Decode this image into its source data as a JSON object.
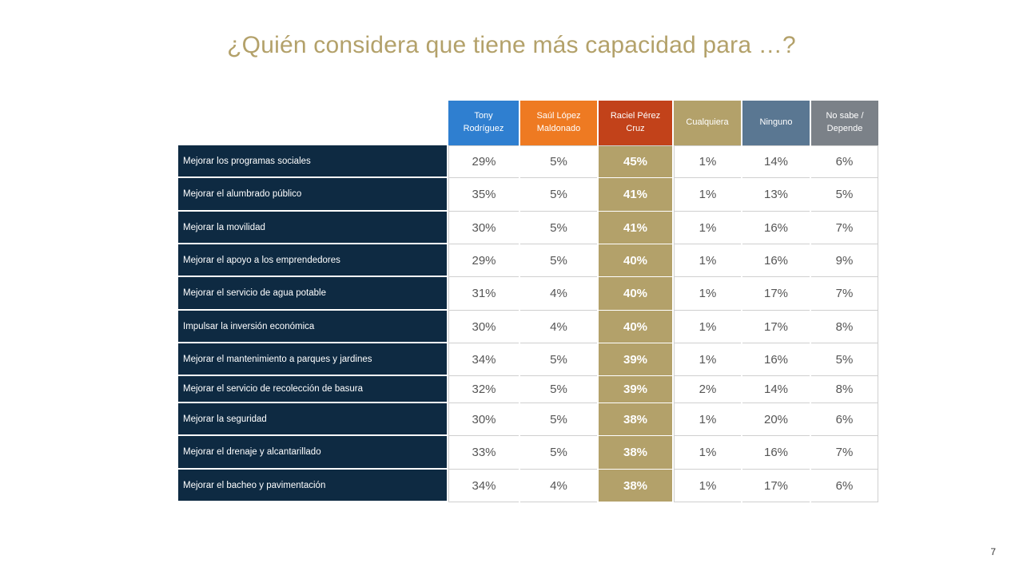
{
  "title": "¿Quién considera que tiene más capacidad para …?",
  "page_number": "7",
  "colors": {
    "title": "#b3a16a",
    "row_label_bg": "#0e2a42",
    "highlight": "#b3a16a",
    "headers": [
      "#2f7fd0",
      "#ee7a22",
      "#c2421a",
      "#b3a16a",
      "#5a7792",
      "#7b8188"
    ]
  },
  "chart_data": {
    "type": "table",
    "title": "¿Quién considera que tiene más capacidad para …?",
    "columns": [
      [
        "Tony",
        "Rodríguez"
      ],
      [
        "Saúl López",
        "Maldonado"
      ],
      [
        "Raciel Pérez",
        "Cruz"
      ],
      [
        "Cualquiera"
      ],
      [
        "Ninguno"
      ],
      [
        "No sabe /",
        "Depende"
      ]
    ],
    "highlight_column": 2,
    "rows": [
      {
        "label": "Mejorar los programas sociales",
        "values": [
          "29%",
          "5%",
          "45%",
          "1%",
          "14%",
          "6%"
        ]
      },
      {
        "label": "Mejorar el alumbrado público",
        "values": [
          "35%",
          "5%",
          "41%",
          "1%",
          "13%",
          "5%"
        ]
      },
      {
        "label": "Mejorar la movilidad",
        "values": [
          "30%",
          "5%",
          "41%",
          "1%",
          "16%",
          "7%"
        ]
      },
      {
        "label": "Mejorar el apoyo a los emprendedores",
        "values": [
          "29%",
          "5%",
          "40%",
          "1%",
          "16%",
          "9%"
        ]
      },
      {
        "label": "Mejorar el servicio de agua potable",
        "values": [
          "31%",
          "4%",
          "40%",
          "1%",
          "17%",
          "7%"
        ]
      },
      {
        "label": "Impulsar la inversión económica",
        "values": [
          "30%",
          "4%",
          "40%",
          "1%",
          "17%",
          "8%"
        ]
      },
      {
        "label": "Mejorar el mantenimiento a parques y jardines",
        "values": [
          "34%",
          "5%",
          "39%",
          "1%",
          "16%",
          "5%"
        ]
      },
      {
        "label": "Mejorar el servicio de recolección de basura",
        "values": [
          "32%",
          "5%",
          "39%",
          "2%",
          "14%",
          "8%"
        ]
      },
      {
        "label": "Mejorar la seguridad",
        "values": [
          "30%",
          "5%",
          "38%",
          "1%",
          "20%",
          "6%"
        ]
      },
      {
        "label": "Mejorar el drenaje y alcantarillado",
        "values": [
          "33%",
          "5%",
          "38%",
          "1%",
          "16%",
          "7%"
        ]
      },
      {
        "label": "Mejorar el bacheo y pavimentación",
        "values": [
          "34%",
          "4%",
          "38%",
          "1%",
          "17%",
          "6%"
        ]
      }
    ]
  }
}
